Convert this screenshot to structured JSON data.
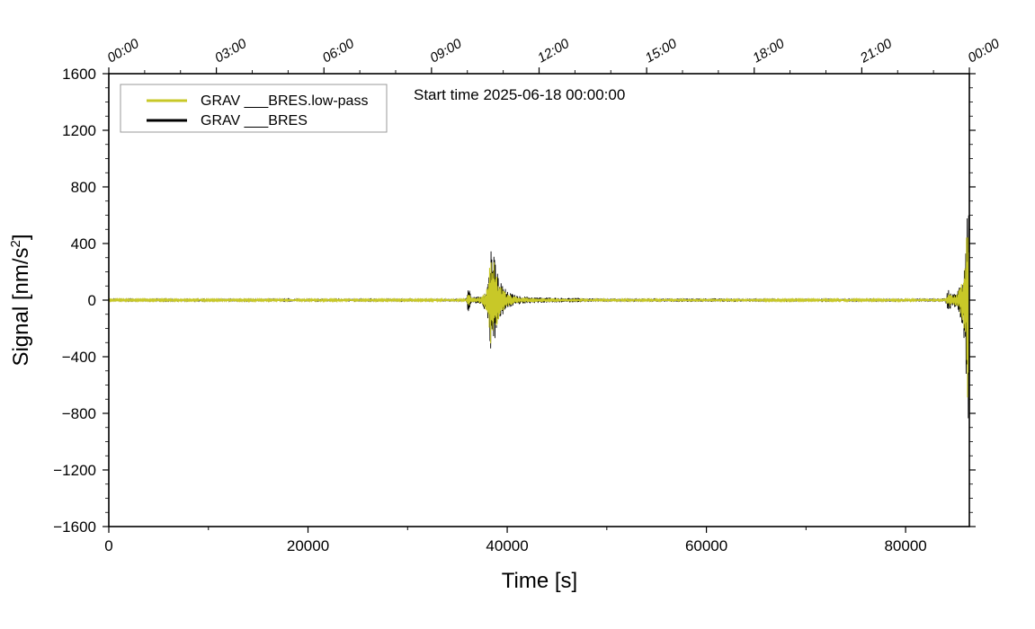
{
  "chart_data": {
    "type": "line",
    "annotation": "Start time 2025-06-18 00:00:00",
    "xlabel": "Time [s]",
    "ylabel_main": "Signal [nm/s",
    "ylabel_sup": "2",
    "ylabel_end": "]",
    "xlim": [
      0,
      86400
    ],
    "ylim": [
      -1600,
      1600
    ],
    "x_ticks": [
      0,
      20000,
      40000,
      60000,
      80000
    ],
    "x_tick_labels": [
      "0",
      "20000",
      "40000",
      "60000",
      "80000"
    ],
    "y_ticks": [
      -1600,
      -1200,
      -800,
      -400,
      0,
      400,
      800,
      1200,
      1600
    ],
    "y_tick_labels": [
      "−1600",
      "−1200",
      "−800",
      "−400",
      "0",
      "400",
      "800",
      "1200",
      "1600"
    ],
    "top_ticks": [
      0,
      10800,
      21600,
      32400,
      43200,
      54000,
      64800,
      75600,
      86400
    ],
    "top_tick_labels": [
      "00:00",
      "03:00",
      "06:00",
      "09:00",
      "12:00",
      "15:00",
      "18:00",
      "21:00",
      "00:00"
    ],
    "grid": false,
    "legend_position": "top-left",
    "series": [
      {
        "name": "GRAV ___BRES",
        "color": "#000000",
        "envelope": [
          [
            0,
            8
          ],
          [
            10000,
            8
          ],
          [
            20000,
            9
          ],
          [
            30000,
            8
          ],
          [
            35900,
            10
          ],
          [
            36100,
            110
          ],
          [
            36400,
            20
          ],
          [
            37500,
            30
          ],
          [
            38100,
            140
          ],
          [
            38400,
            460
          ],
          [
            38700,
            300
          ],
          [
            39200,
            150
          ],
          [
            40000,
            60
          ],
          [
            41000,
            30
          ],
          [
            43000,
            20
          ],
          [
            47000,
            15
          ],
          [
            50000,
            10
          ],
          [
            58000,
            12
          ],
          [
            60000,
            12
          ],
          [
            70000,
            8
          ],
          [
            80000,
            9
          ],
          [
            84000,
            12
          ],
          [
            84300,
            80
          ],
          [
            84700,
            40
          ],
          [
            85200,
            60
          ],
          [
            85800,
            200
          ],
          [
            86100,
            550
          ],
          [
            86300,
            1050
          ],
          [
            86400,
            300
          ]
        ]
      },
      {
        "name": "GRAV ___BRES.low-pass",
        "color": "#c8c828",
        "envelope": [
          [
            0,
            6
          ],
          [
            10000,
            6
          ],
          [
            20000,
            7
          ],
          [
            30000,
            6
          ],
          [
            35900,
            8
          ],
          [
            36100,
            60
          ],
          [
            36400,
            15
          ],
          [
            37500,
            25
          ],
          [
            38100,
            110
          ],
          [
            38400,
            390
          ],
          [
            38700,
            260
          ],
          [
            39200,
            120
          ],
          [
            40000,
            45
          ],
          [
            41000,
            22
          ],
          [
            43000,
            15
          ],
          [
            47000,
            10
          ],
          [
            50000,
            7
          ],
          [
            58000,
            9
          ],
          [
            60000,
            9
          ],
          [
            70000,
            6
          ],
          [
            80000,
            7
          ],
          [
            84000,
            8
          ],
          [
            84300,
            50
          ],
          [
            84700,
            30
          ],
          [
            85200,
            45
          ],
          [
            85800,
            160
          ],
          [
            86100,
            450
          ],
          [
            86300,
            900
          ],
          [
            86400,
            250
          ]
        ]
      }
    ]
  }
}
